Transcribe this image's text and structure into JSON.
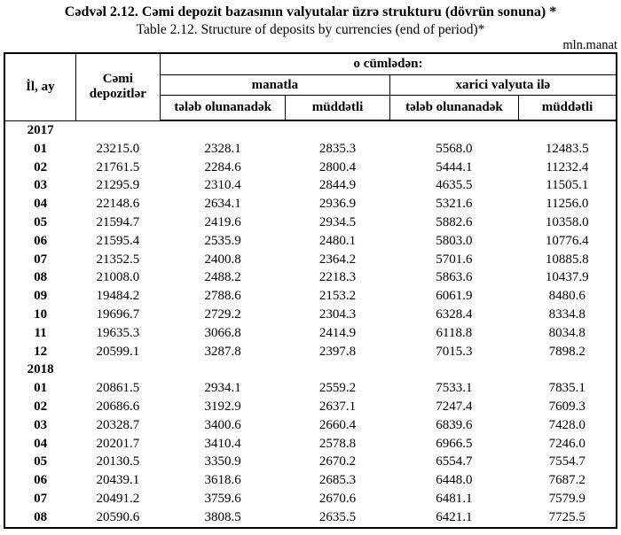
{
  "header": {
    "title_az": "Cədvəl  2.12. Cəmi depozit bazasının valyutalar üzrə strukturu (dövrün sonuna) *",
    "title_en": "Table  2.12. Structure of deposits by currencies (end of period)*",
    "unit": "mln.manat"
  },
  "table": {
    "headers": {
      "year_month": "İl, ay",
      "total": "Cəmi depozitlər",
      "including": "o cümlədən:",
      "in_manat": "manatla",
      "in_foreign_currency": "xarici valyuta ilə",
      "manat_demand": "tələb olunanadək",
      "manat_term": "müddətli",
      "fx_demand": "tələb olunanadək",
      "fx_term": "müddətli"
    },
    "columns_semantic": [
      "month",
      "total_deposits",
      "manat_demand",
      "manat_term",
      "fx_demand",
      "fx_term"
    ],
    "sections": [
      {
        "year": "2017",
        "rows": [
          [
            "01",
            "23215.0",
            "2328.1",
            "2835.3",
            "5568.0",
            "12483.5"
          ],
          [
            "02",
            "21761.5",
            "2284.6",
            "2800.4",
            "5444.1",
            "11232.4"
          ],
          [
            "03",
            "21295.9",
            "2310.4",
            "2844.9",
            "4635.5",
            "11505.1"
          ],
          [
            "04",
            "22148.6",
            "2634.1",
            "2936.9",
            "5321.6",
            "11256.0"
          ],
          [
            "05",
            "21594.7",
            "2419.6",
            "2934.5",
            "5882.6",
            "10358.0"
          ],
          [
            "06",
            "21595.4",
            "2535.9",
            "2480.1",
            "5803.0",
            "10776.4"
          ],
          [
            "07",
            "21352.5",
            "2400.8",
            "2364.2",
            "5701.6",
            "10885.8"
          ],
          [
            "08",
            "21008.0",
            "2488.2",
            "2218.3",
            "5863.6",
            "10437.9"
          ],
          [
            "09",
            "19484.2",
            "2788.6",
            "2153.2",
            "6061.9",
            "8480.6"
          ],
          [
            "10",
            "19696.7",
            "2729.2",
            "2304.3",
            "6328.4",
            "8334.8"
          ],
          [
            "11",
            "19635.3",
            "3066.8",
            "2414.9",
            "6118.8",
            "8034.8"
          ],
          [
            "12",
            "20599.1",
            "3287.8",
            "2397.8",
            "7015.3",
            "7898.2"
          ]
        ]
      },
      {
        "year": "2018",
        "rows": [
          [
            "01",
            "20861.5",
            "2934.1",
            "2559.2",
            "7533.1",
            "7835.1"
          ],
          [
            "02",
            "20686.6",
            "3192.9",
            "2637.1",
            "7247.4",
            "7609.3"
          ],
          [
            "03",
            "20328.7",
            "3400.6",
            "2660.4",
            "6839.6",
            "7428.0"
          ],
          [
            "04",
            "20201.7",
            "3410.4",
            "2578.8",
            "6966.5",
            "7246.0"
          ],
          [
            "05",
            "20130.5",
            "3350.9",
            "2670.2",
            "6554.7",
            "7554.7"
          ],
          [
            "06",
            "20439.1",
            "3618.6",
            "2685.3",
            "6448.0",
            "7687.2"
          ],
          [
            "07",
            "20491.2",
            "3759.6",
            "2670.6",
            "6481.1",
            "7579.9"
          ],
          [
            "08",
            "20590.6",
            "3808.5",
            "2635.5",
            "6421.1",
            "7725.5"
          ]
        ]
      }
    ]
  }
}
